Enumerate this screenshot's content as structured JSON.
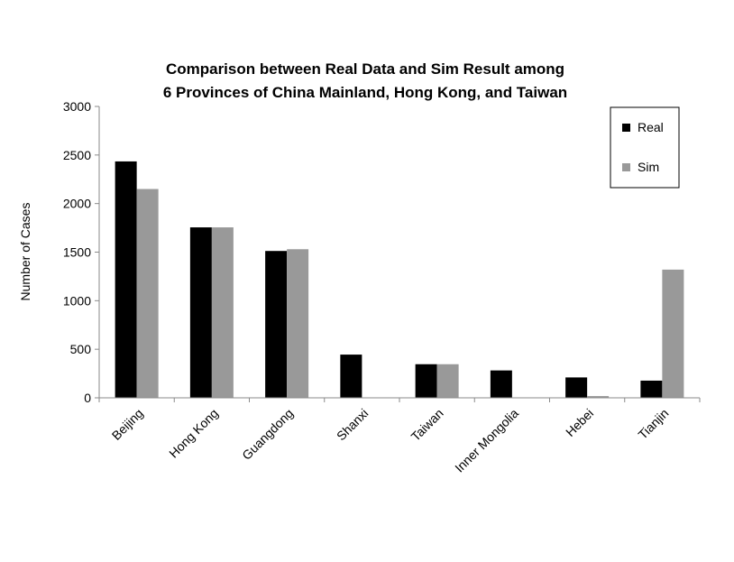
{
  "chart_data": {
    "type": "bar",
    "title": "Comparison between Real Data and Sim Result among 6 Provinces of China Mainland, Hong Kong, and Taiwan",
    "title_lines": [
      "Comparison between Real Data and Sim Result among",
      "6 Provinces of China Mainland, Hong Kong, and Taiwan"
    ],
    "xlabel": "",
    "ylabel": "Number of Cases",
    "ylim": [
      0,
      3000
    ],
    "yticks": [
      "0",
      "500",
      "1000",
      "1500",
      "2000",
      "2500",
      "3000"
    ],
    "categories": [
      "Beijing",
      "Hong Kong",
      "Guangdong",
      "Shanxi",
      "Taiwan",
      "Inner Mongolia",
      "Hebei",
      "Tianjin"
    ],
    "series": [
      {
        "name": "Real",
        "color": "#000000",
        "values": [
          2434,
          1755,
          1512,
          445,
          346,
          282,
          210,
          177
        ]
      },
      {
        "name": "Sim",
        "color": "#999999",
        "values": [
          2150,
          1755,
          1530,
          0,
          346,
          0,
          18,
          1320
        ]
      }
    ],
    "legend": {
      "position": "top-right"
    },
    "grid": false
  }
}
